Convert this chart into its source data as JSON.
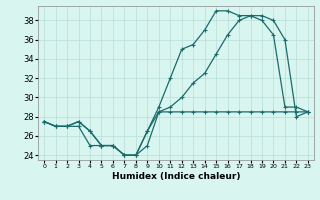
{
  "xlabel": "Humidex (Indice chaleur)",
  "x_values": [
    0,
    1,
    2,
    3,
    4,
    5,
    6,
    7,
    8,
    9,
    10,
    11,
    12,
    13,
    14,
    15,
    16,
    17,
    18,
    19,
    20,
    21,
    22,
    23
  ],
  "series_max": [
    27.5,
    27.0,
    27.0,
    27.5,
    26.5,
    25.0,
    25.0,
    24.0,
    24.0,
    26.5,
    29.0,
    32.0,
    35.0,
    35.5,
    37.0,
    39.0,
    39.0,
    38.5,
    38.5,
    38.0,
    36.5,
    29.0,
    29.0,
    28.5
  ],
  "series_mid": [
    27.5,
    27.0,
    27.0,
    27.5,
    26.5,
    25.0,
    25.0,
    24.0,
    24.0,
    26.5,
    28.5,
    29.0,
    30.0,
    31.5,
    32.5,
    34.5,
    36.5,
    38.0,
    38.5,
    38.5,
    38.0,
    36.0,
    28.0,
    28.5
  ],
  "series_min": [
    27.5,
    27.0,
    27.0,
    27.0,
    25.0,
    25.0,
    25.0,
    24.0,
    24.0,
    25.0,
    28.5,
    28.5,
    28.5,
    28.5,
    28.5,
    28.5,
    28.5,
    28.5,
    28.5,
    28.5,
    28.5,
    28.5,
    28.5,
    28.5
  ],
  "line_color": "#1a6b6b",
  "bg_color": "#d8f5f0",
  "grid_color": "#b8ddd8",
  "ylim": [
    23.5,
    39.5
  ],
  "yticks": [
    24,
    26,
    28,
    30,
    32,
    34,
    36,
    38
  ],
  "xlim": [
    -0.5,
    23.5
  ]
}
